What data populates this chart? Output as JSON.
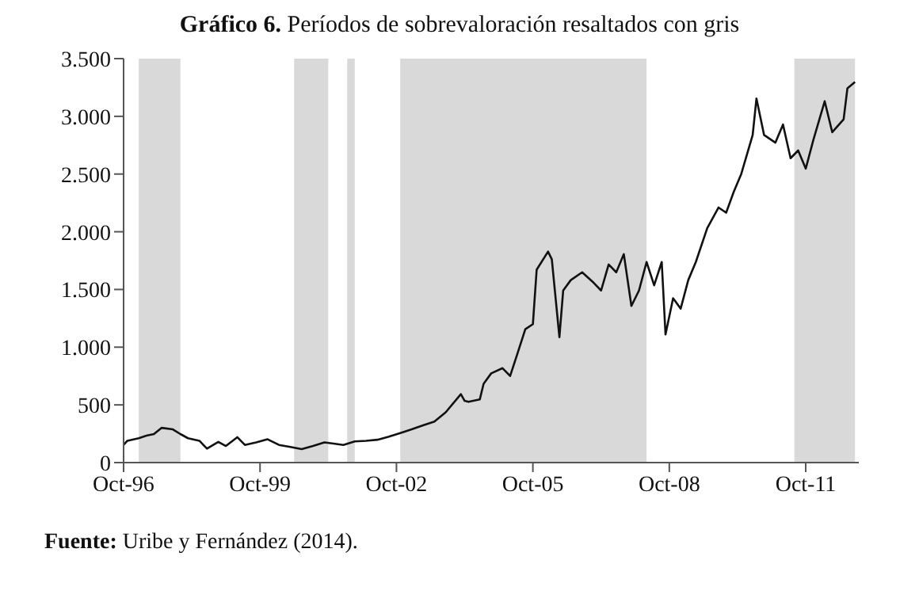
{
  "chart_data": {
    "type": "line",
    "title": "Gráfico 6. Períodos de sobrevaloración resaltados con gris",
    "annotations": [
      "Fuente: Uribe y Fernández (2014)."
    ],
    "x": [
      "1996-10",
      "1996-11",
      "1997-02",
      "1997-04",
      "1997-06",
      "1997-08",
      "1997-11",
      "1998-01",
      "1998-03",
      "1998-06",
      "1998-08",
      "1998-11",
      "1999-01",
      "1999-04",
      "1999-06",
      "1999-09",
      "1999-12",
      "2000-03",
      "2000-06",
      "2000-09",
      "2000-12",
      "2001-03",
      "2001-05",
      "2001-08",
      "2001-11",
      "2002-02",
      "2002-05",
      "2002-08",
      "2002-11",
      "2003-02",
      "2003-05",
      "2003-08",
      "2003-11",
      "2004-03",
      "2004-04",
      "2004-05",
      "2004-08",
      "2004-09",
      "2004-11",
      "2005-02",
      "2005-04",
      "2005-06",
      "2005-08",
      "2005-10",
      "2005-11",
      "2006-02",
      "2006-03",
      "2006-05",
      "2006-06",
      "2006-08",
      "2006-11",
      "2007-02",
      "2007-04",
      "2007-06",
      "2007-08",
      "2007-10",
      "2007-12",
      "2008-02",
      "2008-04",
      "2008-06",
      "2008-08",
      "2008-09",
      "2008-11",
      "2009-01",
      "2009-03",
      "2009-05",
      "2009-08",
      "2009-11",
      "2010-01",
      "2010-03",
      "2010-05",
      "2010-08",
      "2010-09",
      "2010-11",
      "2011-02",
      "2011-04",
      "2011-06",
      "2011-08",
      "2011-10",
      "2011-12",
      "2012-03",
      "2012-05",
      "2012-08",
      "2012-09",
      "2012-11"
    ],
    "series": [
      {
        "color": "#111111",
        "values": [
          153,
          189,
          211,
          234,
          247,
          301,
          288,
          247,
          211,
          189,
          121,
          180,
          144,
          220,
          153,
          175,
          202,
          153,
          135,
          117,
          144,
          175,
          166,
          153,
          184,
          189,
          198,
          225,
          256,
          288,
          323,
          355,
          436,
          593,
          535,
          526,
          548,
          683,
          773,
          818,
          750,
          952,
          1155,
          1199,
          1671,
          1828,
          1761,
          1087,
          1491,
          1581,
          1649,
          1559,
          1491,
          1716,
          1649,
          1806,
          1357,
          1491,
          1738,
          1536,
          1738,
          1110,
          1424,
          1334,
          1581,
          1738,
          2031,
          2210,
          2165,
          2345,
          2502,
          2839,
          3154,
          2839,
          2772,
          2929,
          2637,
          2704,
          2547,
          2794,
          3131,
          2862,
          2974,
          3243,
          3297
        ]
      }
    ],
    "xlim": [
      "1996-10",
      "2012-12"
    ],
    "xticks": [
      {
        "value": "1996-10",
        "label": "Oct-96"
      },
      {
        "value": "1999-10",
        "label": "Oct-99"
      },
      {
        "value": "2002-10",
        "label": "Oct-02"
      },
      {
        "value": "2005-10",
        "label": "Oct-05"
      },
      {
        "value": "2008-10",
        "label": "Oct-08"
      },
      {
        "value": "2011-10",
        "label": "Oct-11"
      }
    ],
    "ylim": [
      0,
      3500
    ],
    "yticks": [
      0,
      500,
      {
        "value": 1000,
        "label": "1.000"
      },
      {
        "value": 1500,
        "label": "1.500"
      },
      {
        "value": 2000,
        "label": "2.000"
      },
      {
        "value": 2500,
        "label": "2.500"
      },
      {
        "value": 3000,
        "label": "3.000"
      },
      {
        "value": 3500,
        "label": "3.500"
      }
    ],
    "bands": [
      {
        "axis": "x",
        "from": "1997-02",
        "to": "1998-01",
        "color": "#d9d9d9"
      },
      {
        "axis": "x",
        "from": "2000-07",
        "to": "2001-04",
        "color": "#d9d9d9"
      },
      {
        "axis": "x",
        "from": "2001-09",
        "to": "2001-11",
        "color": "#d9d9d9"
      },
      {
        "axis": "x",
        "from": "2002-11",
        "to": "2008-04",
        "color": "#d9d9d9"
      },
      {
        "axis": "x",
        "from": "2011-07",
        "to": "2012-11",
        "color": "#d9d9d9"
      }
    ],
    "grid": false,
    "legend": false,
    "marker": "none",
    "line_style": "solid"
  }
}
